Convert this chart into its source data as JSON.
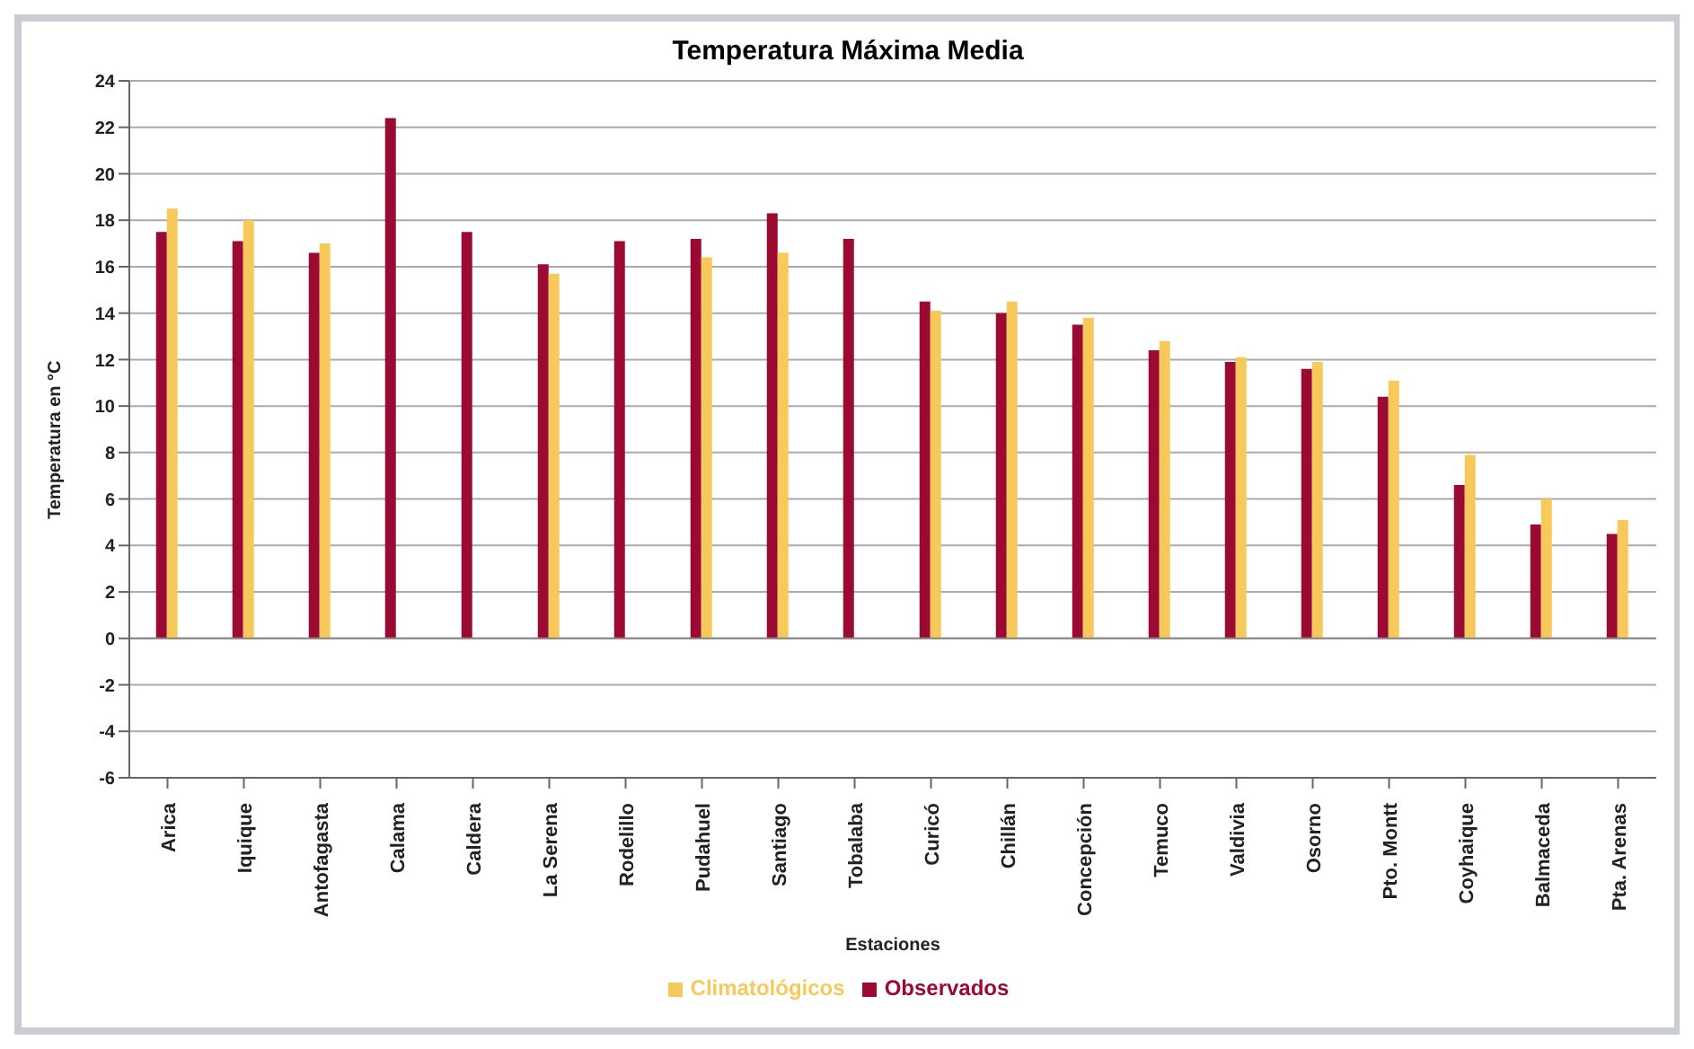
{
  "chart_data": {
    "type": "bar",
    "title": "Temperatura Máxima Media",
    "xlabel": "Estaciones",
    "ylabel": "Temperatura en °C",
    "categories": [
      "Arica",
      "Iquique",
      "Antofagasta",
      "Calama",
      "Caldera",
      "La Serena",
      "Rodelillo",
      "Pudahuel",
      "Santiago",
      "Tobalaba",
      "Curicó",
      "Chillán",
      "Concepción",
      "Temuco",
      "Valdivia",
      "Osorno",
      "Pto. Montt",
      "Coyhaique",
      "Balmaceda",
      "Pta. Arenas"
    ],
    "series": [
      {
        "name": "Observados",
        "color": "#9b0a32",
        "values": [
          17.5,
          17.1,
          16.6,
          22.4,
          17.5,
          16.1,
          17.1,
          17.2,
          18.3,
          17.2,
          14.5,
          14.0,
          13.5,
          12.4,
          11.9,
          11.6,
          10.4,
          6.6,
          4.9,
          4.5
        ]
      },
      {
        "name": "Climatológicos",
        "color": "#f7c95a",
        "values": [
          18.5,
          18.0,
          17.0,
          null,
          null,
          15.7,
          null,
          16.4,
          16.6,
          null,
          14.1,
          14.5,
          13.8,
          12.8,
          12.1,
          11.9,
          11.1,
          7.9,
          6.0,
          5.1
        ]
      }
    ],
    "ylim": [
      -6,
      24
    ],
    "yticks": [
      -6,
      -4,
      -2,
      0,
      2,
      4,
      6,
      8,
      10,
      12,
      14,
      16,
      18,
      20,
      22,
      24
    ],
    "grid": "y",
    "legend": "bottom"
  }
}
